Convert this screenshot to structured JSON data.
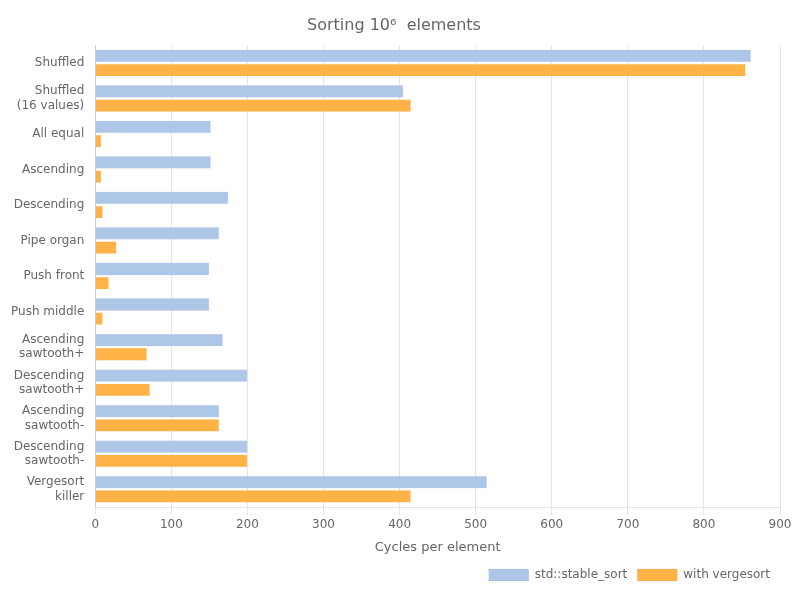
{
  "chart_data": {
    "type": "bar",
    "orientation": "horizontal",
    "title": "Sorting 10⁶  elements",
    "xlabel": "Cycles per element",
    "categories": [
      "Shuffled",
      "Shuffled\n(16 values)",
      "All equal",
      "Ascending",
      "Descending",
      "Pipe organ",
      "Push front",
      "Push middle",
      "Ascending\nsawtooth+",
      "Descending\nsawtooth+",
      "Ascending\nsawtooth-",
      "Descending\nsawtooth-",
      "Vergesort\nkiller"
    ],
    "series": [
      {
        "name": "std::stable_sort",
        "color": "#aec6e8",
        "values": [
          862,
          405,
          152,
          152,
          175,
          163,
          150,
          150,
          168,
          200,
          163,
          200,
          515
        ]
      },
      {
        "name": "with vergesort",
        "color": "#ffb347",
        "values": [
          855,
          415,
          8,
          8,
          10,
          28,
          18,
          10,
          68,
          72,
          163,
          200,
          415
        ]
      }
    ],
    "xlim": [
      0,
      900
    ],
    "xticks": [
      0,
      100,
      200,
      300,
      400,
      500,
      600,
      700,
      800,
      900
    ],
    "grid": true,
    "legend": "lower right"
  }
}
